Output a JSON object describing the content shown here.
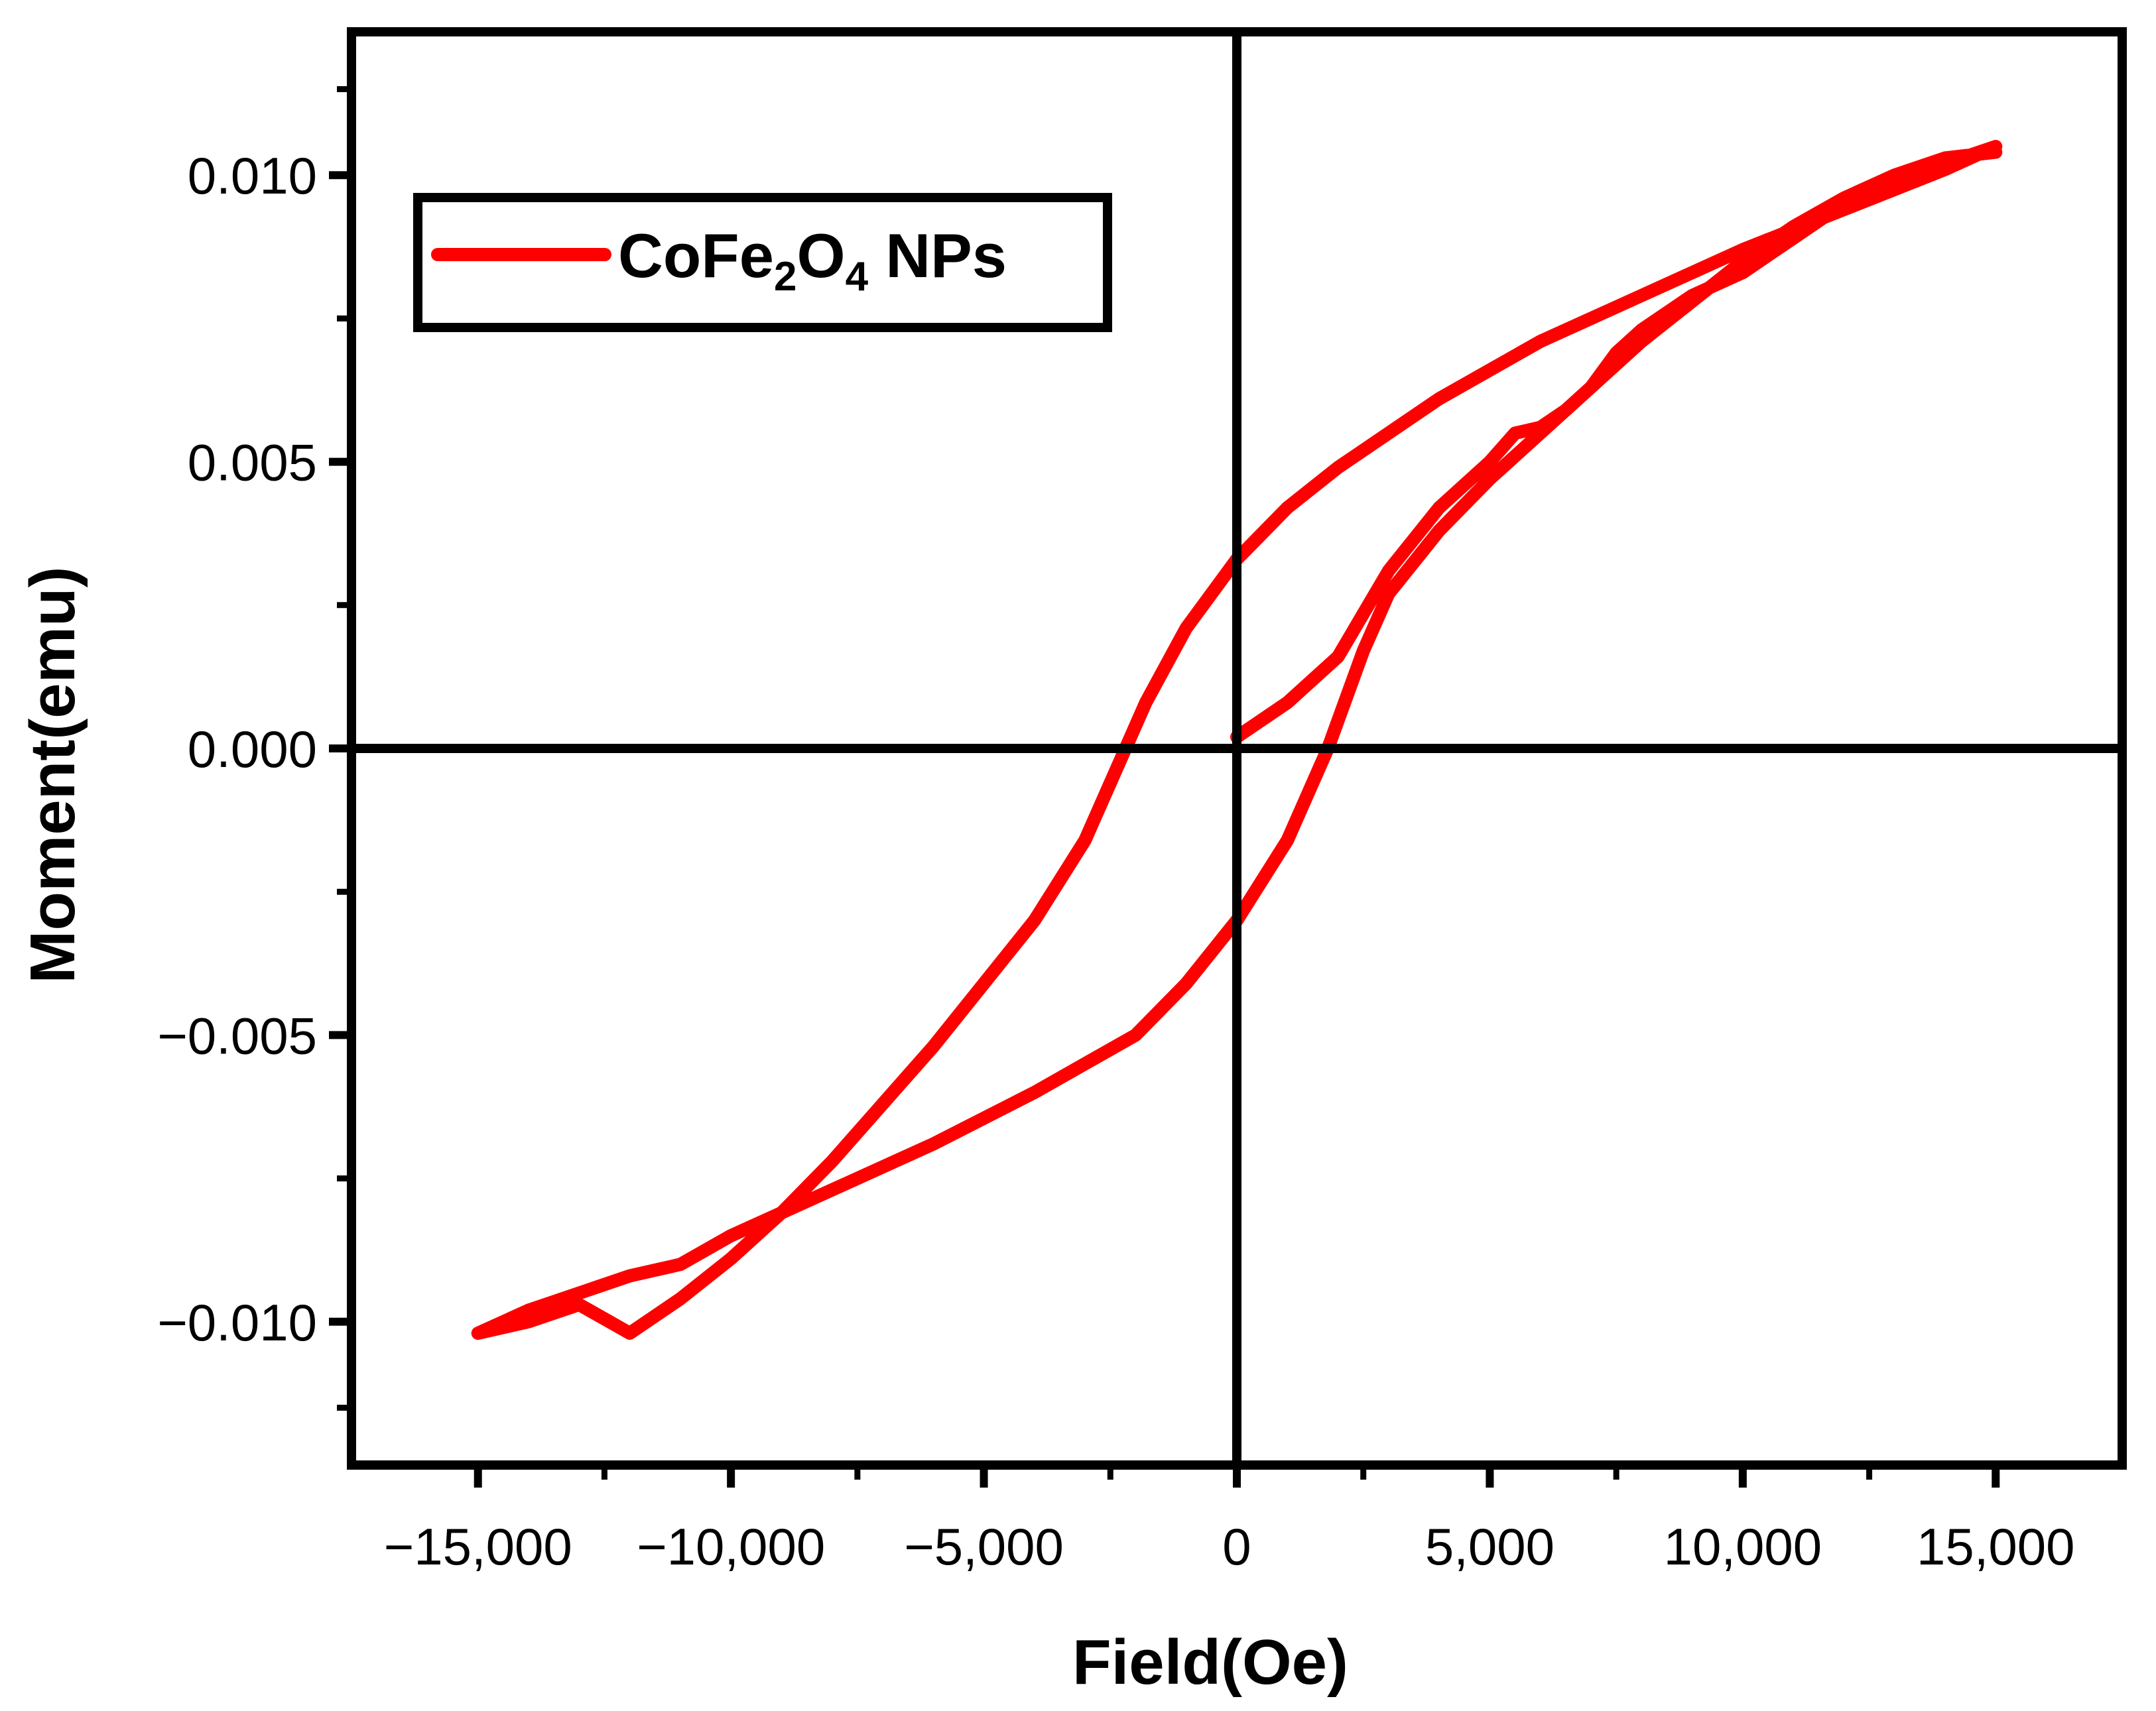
{
  "chart_data": {
    "type": "line",
    "title": "",
    "xlabel": "Field(Oe)",
    "ylabel": "Moment(emu)",
    "xlim": [
      -17500,
      17500
    ],
    "ylim": [
      -0.0125,
      0.0125
    ],
    "x_ticks": [
      -15000,
      -10000,
      -5000,
      0,
      5000,
      10000,
      15000
    ],
    "x_tick_labels": [
      "−15,000",
      "−10,000",
      "−5,000",
      "0",
      "5,000",
      "10,000",
      "15,000"
    ],
    "y_ticks": [
      -0.01,
      -0.005,
      0.0,
      0.005,
      0.01
    ],
    "y_tick_labels": [
      "−0.010",
      "−0.005",
      "0.000",
      "0.005",
      "0.010"
    ],
    "grid": false,
    "zero_lines": true,
    "legend": {
      "position": "top-left",
      "entries": [
        {
          "name": "CoFe2O4 NPs",
          "base1": "CoFe",
          "sub1": "2",
          "base2": "O",
          "sub2": "4",
          "rest": " NPs",
          "color": "#ff0000"
        }
      ]
    },
    "series": [
      {
        "name": "CoFe2O4 NPs",
        "color": "#ff0000",
        "x": [
          0,
          1000,
          2000,
          3000,
          4000,
          5000,
          5500,
          6000,
          6500,
          7000,
          7500,
          8000,
          9000,
          10000,
          11000,
          12000,
          13000,
          14000,
          15000,
          14000,
          12000,
          10000,
          8000,
          6000,
          4000,
          2000,
          1000,
          0,
          -1000,
          -1800,
          -2200,
          -3000,
          -4000,
          -5000,
          -6000,
          -7000,
          -8000,
          -9000,
          -10000,
          -11000,
          -12000,
          -13000,
          -14000,
          -15000,
          -14000,
          -13000,
          -12000,
          -11500,
          -11000,
          -10000,
          -8000,
          -6000,
          -4000,
          -2000,
          -1000,
          0,
          1000,
          1800,
          2500,
          3000,
          4000,
          5000,
          6000,
          7000,
          8000,
          9000,
          10000,
          11000,
          12000,
          13000,
          14000,
          15000
        ],
        "y": [
          0.0002,
          0.0008,
          0.0016,
          0.0031,
          0.0042,
          0.005,
          0.0055,
          0.0056,
          0.0059,
          0.0063,
          0.0069,
          0.0073,
          0.0079,
          0.0083,
          0.0089,
          0.0095,
          0.0099,
          0.0102,
          0.0105,
          0.0101,
          0.0094,
          0.0087,
          0.0079,
          0.0071,
          0.0061,
          0.0049,
          0.0042,
          0.0033,
          0.0021,
          0.0008,
          0.0,
          -0.0016,
          -0.003,
          -0.0041,
          -0.0052,
          -0.0062,
          -0.0072,
          -0.0081,
          -0.0089,
          -0.0096,
          -0.0102,
          -0.0097,
          -0.01,
          -0.0102,
          -0.0098,
          -0.0095,
          -0.0092,
          -0.0091,
          -0.009,
          -0.0085,
          -0.0077,
          -0.0069,
          -0.006,
          -0.005,
          -0.0041,
          -0.003,
          -0.0016,
          0.0,
          0.0017,
          0.0027,
          0.0038,
          0.0047,
          0.0055,
          0.0063,
          0.0071,
          0.0078,
          0.0085,
          0.0091,
          0.0096,
          0.01,
          0.0103,
          0.0104
        ]
      }
    ]
  }
}
